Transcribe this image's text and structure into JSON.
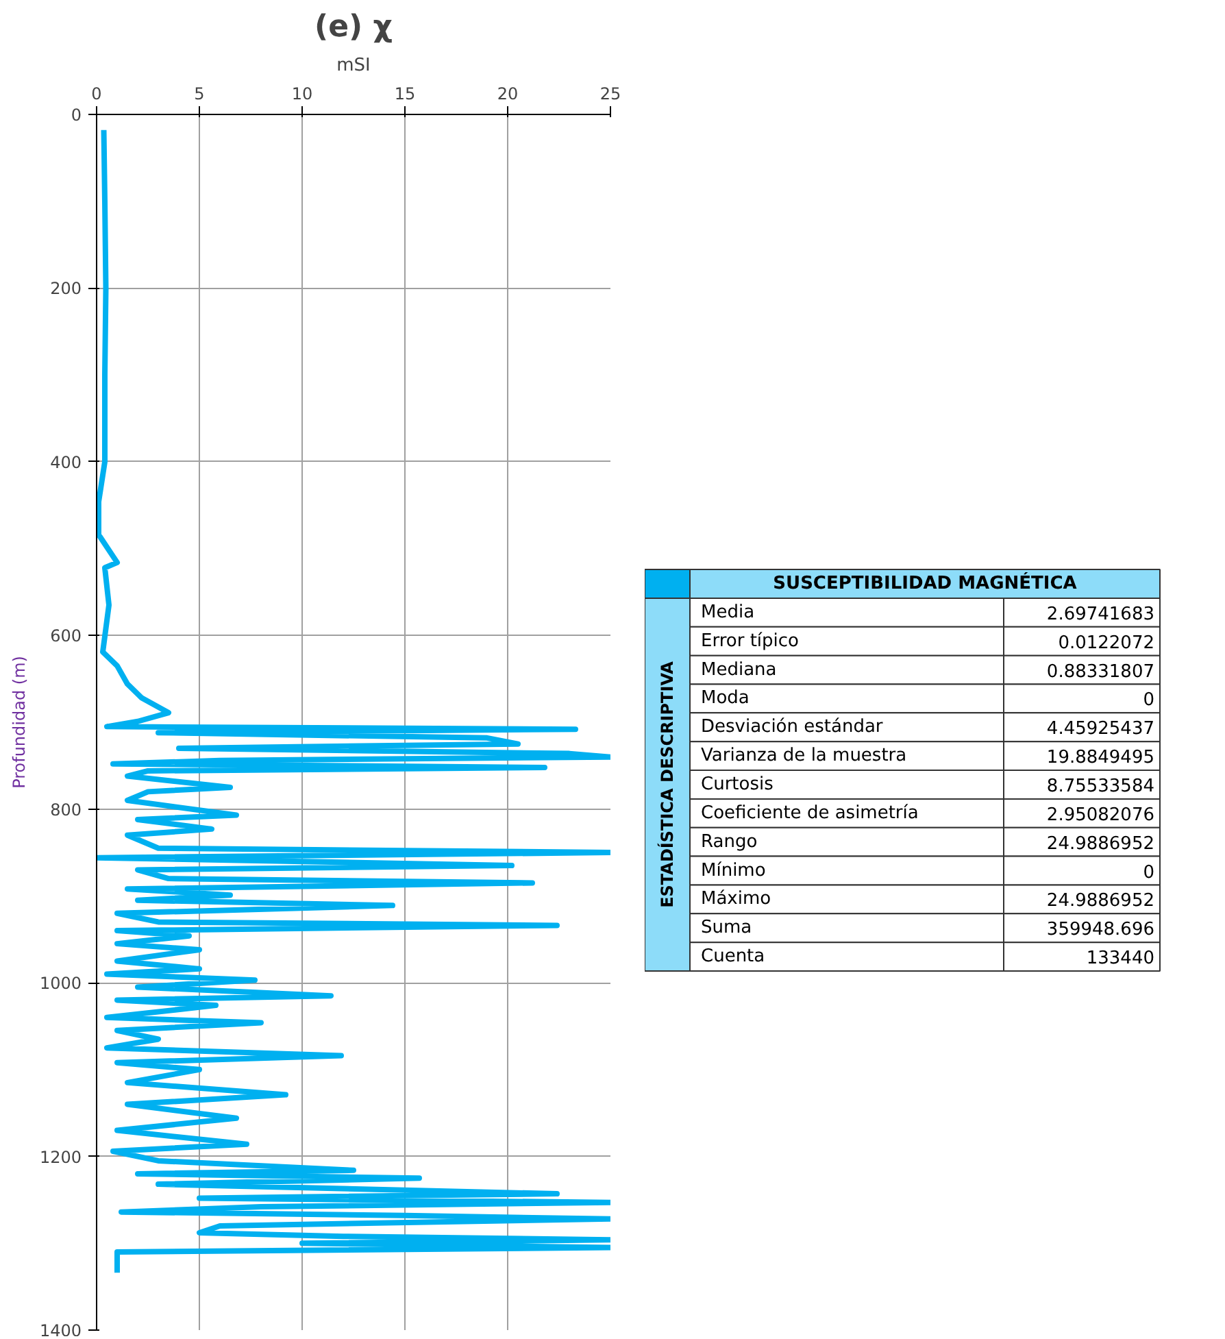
{
  "chart_data": [
    {
      "type": "line",
      "title": "(e) χ",
      "xlabel": "mSI",
      "ylabel": "Profundidad (m)",
      "orientation": "horizontal",
      "x": [
        18,
        100,
        200,
        300,
        400,
        446,
        484,
        516,
        522,
        565,
        619,
        635,
        656,
        672,
        689,
        699,
        705,
        708,
        712,
        718,
        725,
        730,
        736,
        740,
        744,
        748,
        752,
        756,
        762,
        775,
        780,
        790,
        807,
        812,
        823,
        830,
        845,
        850,
        856,
        865,
        870,
        880,
        885,
        892,
        899,
        905,
        911,
        920,
        930,
        934,
        940,
        946,
        955,
        962,
        975,
        984,
        990,
        997,
        1005,
        1015,
        1020,
        1026,
        1040,
        1046,
        1055,
        1065,
        1075,
        1084,
        1092,
        1100,
        1115,
        1129,
        1140,
        1156,
        1170,
        1186,
        1194,
        1205,
        1216,
        1220,
        1225,
        1232,
        1243,
        1248,
        1253,
        1258,
        1264,
        1268,
        1272,
        1280,
        1288,
        1292,
        1296,
        1300,
        1305,
        1310,
        1320,
        1334
      ],
      "series": [
        {
          "color": "#00b0f0",
          "values": [
            0.35,
            0.4,
            0.45,
            0.4,
            0.4,
            0.1,
            0.1,
            1.0,
            0.4,
            0.6,
            0.3,
            1.0,
            1.5,
            2.2,
            3.5,
            2.0,
            0.5,
            23.3,
            3.0,
            19.0,
            20.5,
            4.0,
            23.0,
            25,
            6.0,
            0.8,
            21.8,
            2.5,
            1.5,
            6.5,
            2.5,
            1.5,
            6.8,
            2.0,
            5.6,
            1.5,
            3.0,
            25,
            0,
            20.2,
            2.0,
            3.5,
            21.2,
            1.5,
            6.5,
            2.0,
            14.4,
            1.0,
            3.0,
            22.4,
            1.0,
            4.5,
            1.0,
            5.0,
            1.0,
            5.0,
            0.5,
            7.7,
            2.0,
            11.4,
            1.0,
            5.8,
            0.5,
            8.0,
            1.0,
            3.0,
            0.5,
            11.9,
            1.0,
            5.0,
            1.5,
            9.2,
            1.5,
            6.8,
            1.0,
            7.3,
            0.8,
            3.0,
            12.5,
            2.0,
            15.7,
            3.0,
            22.4,
            5.0,
            25,
            8.0,
            1.2,
            15.0,
            25,
            6.0,
            5.0,
            12.0,
            25,
            10.0,
            25,
            1.0,
            1.0,
            1.0
          ]
        }
      ],
      "xlim": [
        0,
        25
      ],
      "xticks": [
        0,
        5,
        10,
        15,
        20,
        25
      ],
      "ylim": [
        1400,
        0
      ],
      "yticks": [
        0,
        200,
        400,
        600,
        800,
        1000,
        1200,
        1400
      ],
      "grid": true,
      "marker": "none",
      "line_style": "solid"
    },
    {
      "type": "other",
      "title": "SUSCEPTIBILIDAD MAGNÉTICA",
      "ylabel": "ESTADÍSTICA DESCRIPTIVA",
      "categories": [
        "Media",
        "Error típico",
        "Mediana",
        "Moda",
        "Desviación estándar",
        "Varianza de la muestra",
        "Curtosis",
        "Coeficiente de asimetría",
        "Rango",
        "Mínimo",
        "Máximo",
        "Suma",
        "Cuenta"
      ],
      "values": [
        2.69741683,
        0.0122072,
        0.88331807,
        0,
        4.45925437,
        19.8849495,
        8.75533584,
        2.95082076,
        24.9886952,
        0,
        24.9886952,
        359948.696,
        133440
      ],
      "data_labels": true
    }
  ]
}
